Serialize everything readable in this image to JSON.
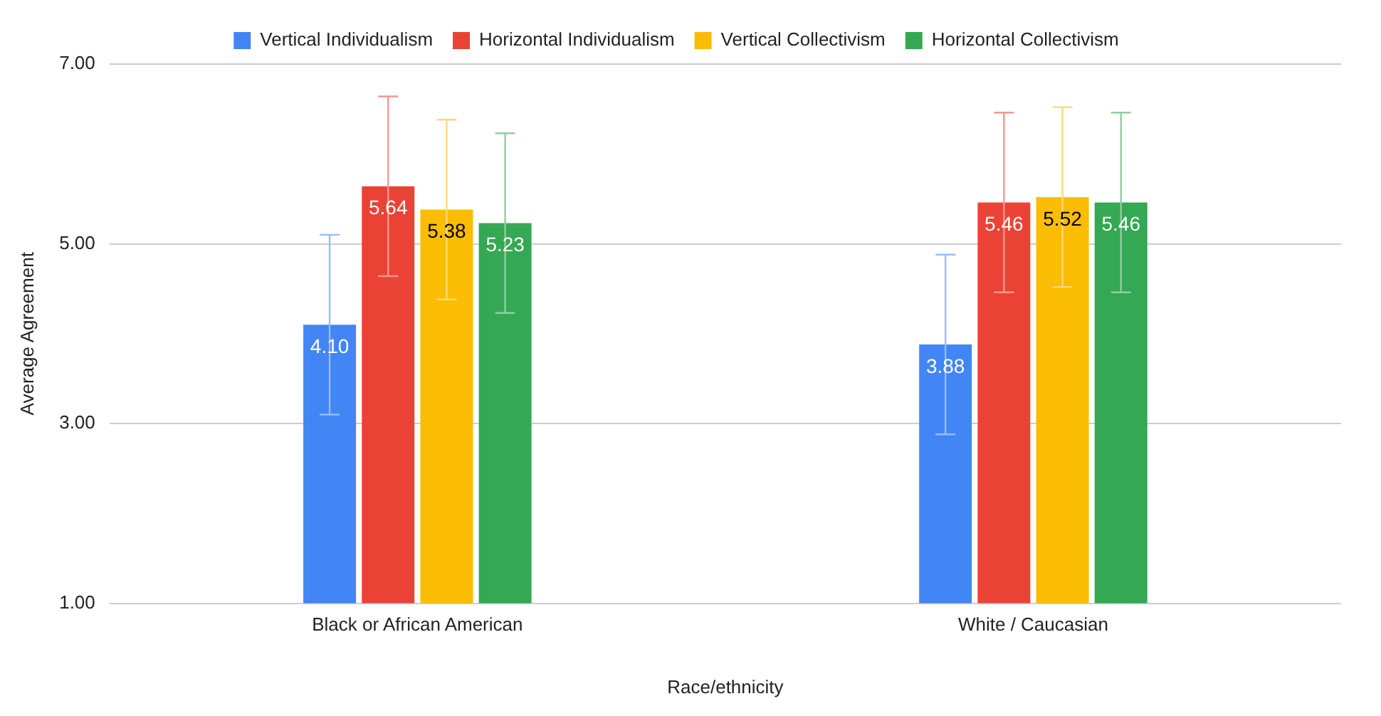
{
  "chart_data": {
    "type": "bar",
    "xlabel": "Race/ethnicity",
    "ylabel": "Average Agreement",
    "categories": [
      "Black or African American",
      "White / Caucasian"
    ],
    "series": [
      {
        "name": "Vertical Individualism",
        "color": "#4285f4",
        "values": [
          4.1,
          3.88
        ],
        "errors": [
          1,
          1
        ],
        "value_labels": [
          "4.10",
          "3.88"
        ]
      },
      {
        "name": "Horizontal Individualism",
        "color": "#ea4335",
        "values": [
          5.64,
          5.46
        ],
        "errors": [
          1,
          1
        ],
        "value_labels": [
          "5.64",
          "5.46"
        ]
      },
      {
        "name": "Vertical Collectivism",
        "color": "#fbbc04",
        "values": [
          5.38,
          5.52
        ],
        "errors": [
          1,
          1
        ],
        "value_labels": [
          "5.38",
          "5.52"
        ]
      },
      {
        "name": "Horizontal Collectivism",
        "color": "#34a853",
        "values": [
          5.23,
          5.46
        ],
        "errors": [
          1,
          1
        ],
        "value_labels": [
          "5.23",
          "5.46"
        ]
      }
    ],
    "ylim": [
      1,
      7
    ],
    "yticks": [
      {
        "value": 1,
        "label": "1.00"
      },
      {
        "value": 3,
        "label": "3.00"
      },
      {
        "value": 5,
        "label": "5.00"
      },
      {
        "value": 7,
        "label": "7.00"
      }
    ],
    "grid": "y",
    "legend": "top"
  }
}
